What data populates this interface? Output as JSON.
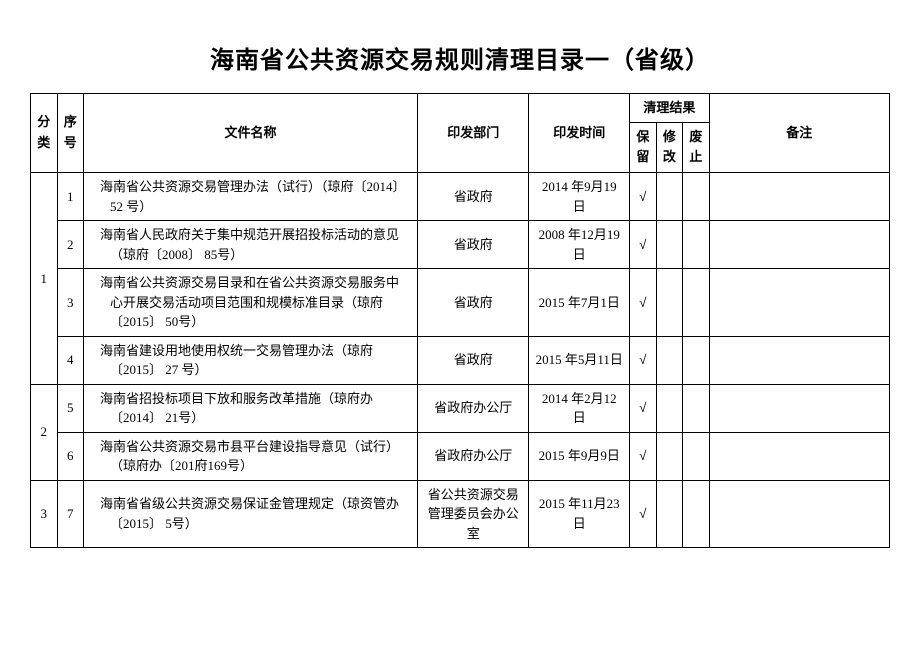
{
  "title": "海南省公共资源交易规则清理目录一（省级）",
  "headers": {
    "category": "分类",
    "seq": "序号",
    "name": "文件名称",
    "dept": "印发部门",
    "date": "印发时间",
    "result": "清理结果",
    "keep": "保留",
    "modify": "修改",
    "abolish": "废止",
    "note": "备注"
  },
  "check_mark": "√",
  "groups": [
    {
      "category": "1",
      "rows": [
        {
          "seq": "1",
          "name": "海南省公共资源交易管理办法（试行）（琼府〔2014〕 52 号）",
          "dept": "省政府",
          "date": "2014 年9月19日",
          "keep": true
        },
        {
          "seq": "2",
          "name": "海南省人民政府关于集中规范开展招投标活动的意见（琼府〔2008〕 85号）",
          "dept": "省政府",
          "date": "2008 年12月19日",
          "keep": true
        },
        {
          "seq": "3",
          "name": "海南省公共资源交易目录和在省公共资源交易服务中心开展交易活动项目范围和规模标准目录（琼府〔2015〕 50号）",
          "dept": "省政府",
          "date": "2015 年7月1日",
          "keep": true
        },
        {
          "seq": "4",
          "name": "海南省建设用地使用权统一交易管理办法（琼府〔2015〕 27 号）",
          "dept": "省政府",
          "date": "2015 年5月11日",
          "keep": true
        }
      ]
    },
    {
      "category": "2",
      "rows": [
        {
          "seq": "5",
          "name": "海南省招投标项目下放和服务改革措施（琼府办〔2014〕 21号）",
          "dept": "省政府办公厅",
          "date": "2014 年2月12日",
          "keep": true
        },
        {
          "seq": "6",
          "name": "海南省公共资源交易市县平台建设指导意见（试行）（琼府办〔201府169号）",
          "dept": "省政府办公厅",
          "date": "2015 年9月9日",
          "keep": true
        }
      ]
    },
    {
      "category": "3",
      "rows": [
        {
          "seq": "7",
          "name": "海南省省级公共资源交易保证金管理规定（琼资管办〔2015〕 5号）",
          "dept": "省公共资源交易管理委员会办公室",
          "date": "2015 年11月23日",
          "keep": true
        }
      ]
    }
  ],
  "colors": {
    "background": "#ffffff",
    "border": "#000000",
    "text": "#000000"
  },
  "font_sizes": {
    "title": 24,
    "cell": 13
  }
}
